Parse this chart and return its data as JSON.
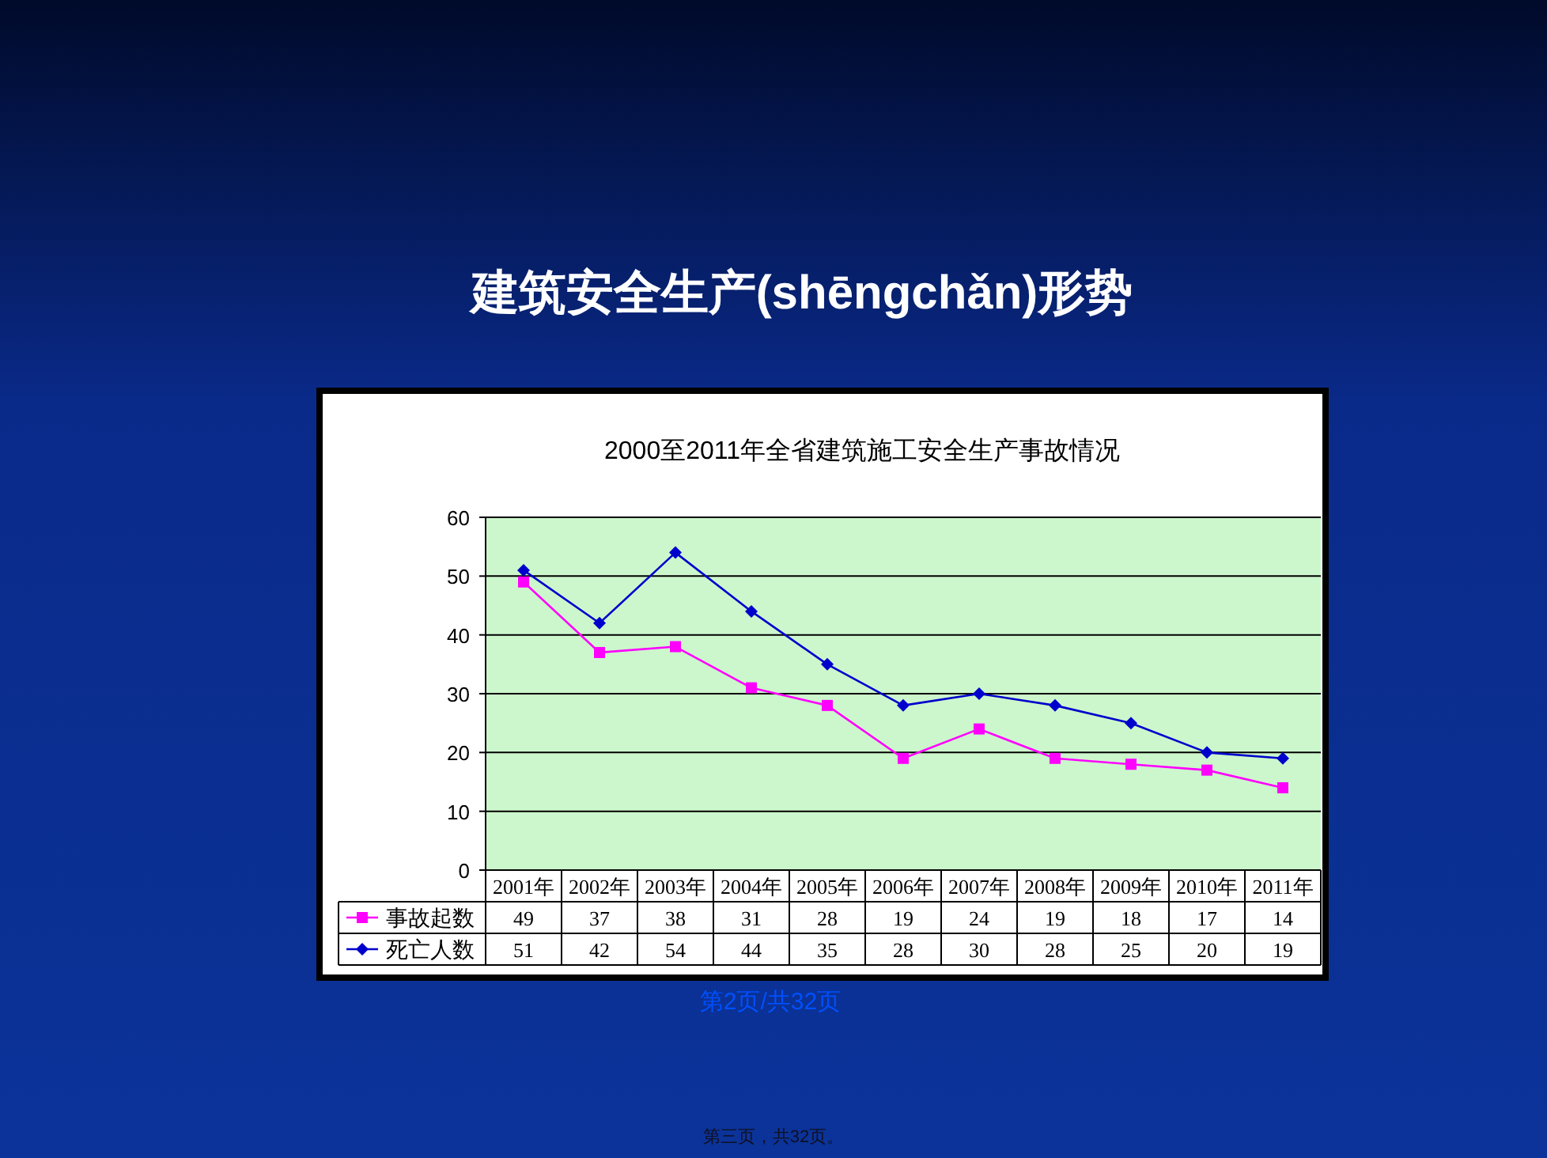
{
  "chart_data": {
    "type": "line",
    "title": "建筑安全生产(shēngchǎn)形势",
    "subtitle": "2000至2011年全省建筑施工安全生产事故情况",
    "categories": [
      "2001年",
      "2002年",
      "2003年",
      "2004年",
      "2005年",
      "2006年",
      "2007年",
      "2008年",
      "2009年",
      "2010年",
      "2011年"
    ],
    "series": [
      {
        "name": "事故起数",
        "color": "#ff00ff",
        "marker": "square",
        "values": [
          49,
          37,
          38,
          31,
          28,
          19,
          24,
          19,
          18,
          17,
          14
        ]
      },
      {
        "name": "死亡人数",
        "color": "#0000cc",
        "marker": "diamond",
        "values": [
          51,
          42,
          54,
          44,
          35,
          28,
          30,
          28,
          25,
          20,
          19
        ]
      }
    ],
    "ylim": [
      0,
      60
    ],
    "yticks": [
      0,
      10,
      20,
      30,
      40,
      50,
      60
    ],
    "grid": "y",
    "legend": "bottom left",
    "data_labels": true,
    "annotations": [
      "第2页/共32页",
      "第三页，共32页。"
    ]
  }
}
